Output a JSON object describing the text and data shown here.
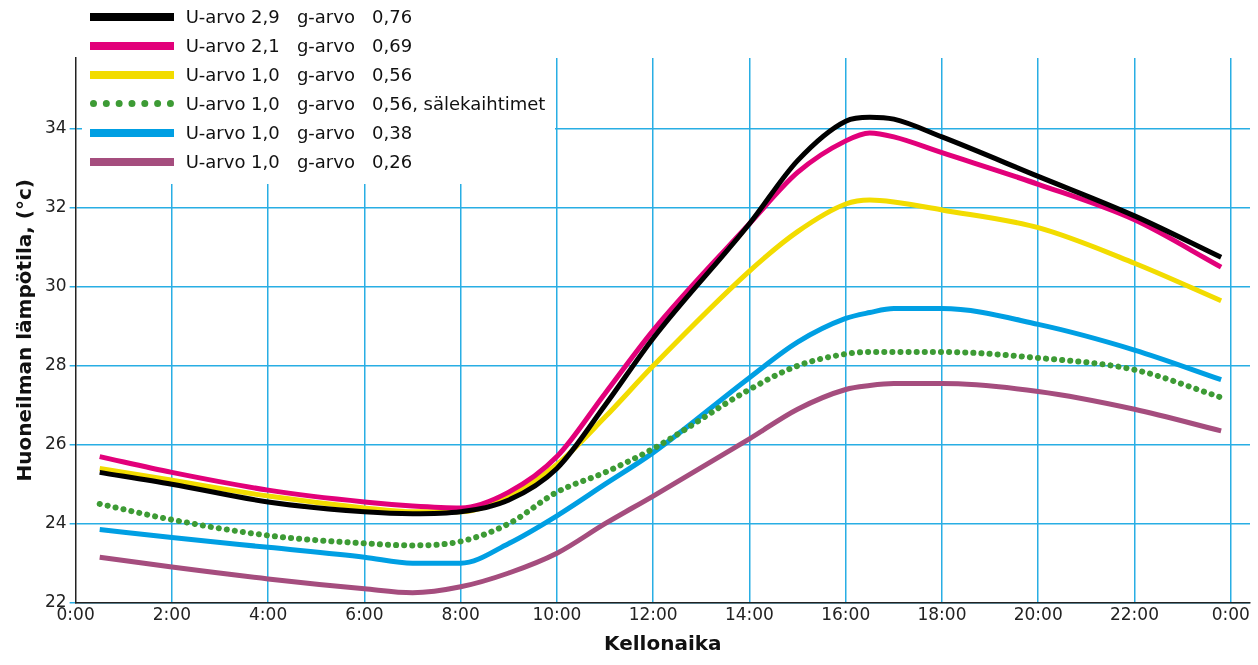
{
  "chart_data": {
    "type": "line",
    "xlabel": "Kellonaika",
    "ylabel": "Huoneilman lämpötila, (°c)",
    "xlim": [
      0,
      24.4
    ],
    "ylim": [
      22,
      35.8
    ],
    "xticks": [
      {
        "value": 0,
        "label": "0:00"
      },
      {
        "value": 2,
        "label": "2:00"
      },
      {
        "value": 4,
        "label": "4:00"
      },
      {
        "value": 6,
        "label": "6:00"
      },
      {
        "value": 8,
        "label": "8:00"
      },
      {
        "value": 10,
        "label": "10:00"
      },
      {
        "value": 12,
        "label": "12:00"
      },
      {
        "value": 14,
        "label": "14:00"
      },
      {
        "value": 16,
        "label": "16:00"
      },
      {
        "value": 18,
        "label": "18:00"
      },
      {
        "value": 20,
        "label": "20:00"
      },
      {
        "value": 22,
        "label": "22:00"
      },
      {
        "value": 24,
        "label": "0:00"
      }
    ],
    "yticks": [
      22,
      24,
      26,
      28,
      30,
      32,
      34
    ],
    "grid": true,
    "legend": "top left",
    "marker": "none",
    "x": [
      0.5,
      2,
      4,
      6,
      7,
      8,
      9,
      10,
      11,
      12,
      14,
      15,
      16,
      16.5,
      17,
      18,
      20,
      22,
      23.8
    ],
    "series": [
      {
        "name": "U-arvo 2,9   g-arvo   0,76",
        "color": "#000000",
        "line_style": "solid",
        "values": [
          25.3,
          25.0,
          24.55,
          24.3,
          24.25,
          24.3,
          24.6,
          25.4,
          27.0,
          28.7,
          31.6,
          33.2,
          34.2,
          34.3,
          34.25,
          33.8,
          32.8,
          31.8,
          30.75
        ]
      },
      {
        "name": "U-arvo 2,1   g-arvo   0,69",
        "color": "#e2007a",
        "line_style": "solid",
        "values": [
          25.7,
          25.3,
          24.85,
          24.55,
          24.45,
          24.4,
          24.8,
          25.7,
          27.3,
          28.9,
          31.6,
          32.9,
          33.7,
          33.9,
          33.8,
          33.4,
          32.6,
          31.7,
          30.5
        ]
      },
      {
        "name": "U-arvo 1,0   g-arvo   0,56",
        "color": "#f2dc00",
        "line_style": "solid",
        "values": [
          25.4,
          25.1,
          24.7,
          24.4,
          24.3,
          24.3,
          24.7,
          25.5,
          26.7,
          28.0,
          30.4,
          31.4,
          32.1,
          32.2,
          32.15,
          31.95,
          31.5,
          30.6,
          29.65
        ]
      },
      {
        "name": "U-arvo 1,0   g-arvo   0,56, sälekaihtimet",
        "color": "#3d9b35",
        "line_style": "dotted",
        "values": [
          24.5,
          24.1,
          23.7,
          23.5,
          23.45,
          23.55,
          24.0,
          24.8,
          25.3,
          25.9,
          27.4,
          28.0,
          28.3,
          28.35,
          28.35,
          28.35,
          28.2,
          27.9,
          27.2
        ]
      },
      {
        "name": "U-arvo 1,0   g-arvo   0,38",
        "color": "#009fe3",
        "line_style": "solid",
        "values": [
          23.85,
          23.65,
          23.4,
          23.15,
          23.0,
          23.0,
          23.5,
          24.2,
          25.0,
          25.8,
          27.7,
          28.6,
          29.2,
          29.35,
          29.45,
          29.45,
          29.05,
          28.4,
          27.65
        ]
      },
      {
        "name": "U-arvo 1,0   g-arvo   0,26",
        "color": "#a54d7e",
        "line_style": "solid",
        "values": [
          23.15,
          22.9,
          22.6,
          22.35,
          22.25,
          22.4,
          22.75,
          23.25,
          24.0,
          24.7,
          26.15,
          26.9,
          27.4,
          27.5,
          27.55,
          27.55,
          27.35,
          26.9,
          26.35
        ]
      }
    ]
  }
}
